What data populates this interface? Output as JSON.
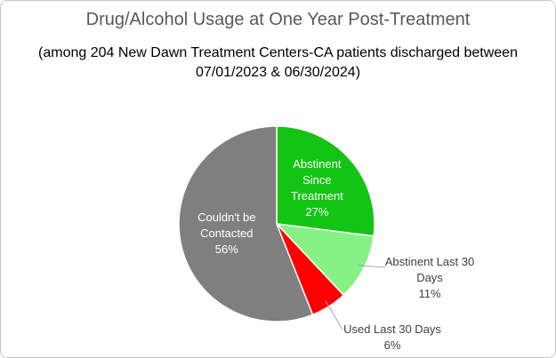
{
  "chart_data": {
    "type": "pie",
    "title": "Drug/Alcohol Usage at One Year Post-Treatment",
    "subtitle": "(among 204 New Dawn Treatment Centers-CA patients discharged between 07/01/2023 & 06/30/2024)",
    "categories": [
      "Abstinent Since Treatment",
      "Abstinent Last 30 Days",
      "Used Last 30 Days",
      "Couldn't be Contacted"
    ],
    "values": [
      27,
      11,
      6,
      56
    ],
    "value_labels": [
      "27%",
      "11%",
      "6%",
      "56%"
    ],
    "colors": [
      "#14c414",
      "#86f286",
      "#ff0000",
      "#7f7f7f"
    ]
  }
}
